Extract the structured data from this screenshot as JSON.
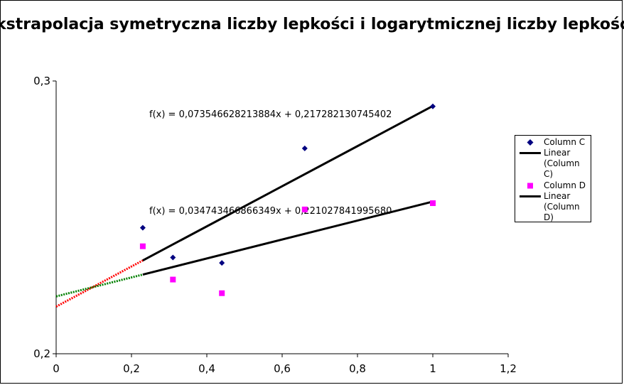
{
  "chart_data": {
    "type": "scatter",
    "title": "Ekstrapolacja symetryczna liczby lepkości i logarytmicznej liczby lepkości",
    "xlim": [
      0,
      1.2
    ],
    "ylim": [
      0.2,
      0.3
    ],
    "x_ticks": [
      "0",
      "0,2",
      "0,4",
      "0,6",
      "0,8",
      "1",
      "1,2"
    ],
    "y_ticks": [
      "0,2",
      "0,3"
    ],
    "series": [
      {
        "name": "Column C",
        "marker": "diamond",
        "color": "#000080",
        "points": [
          [
            0.23,
            0.2462
          ],
          [
            0.31,
            0.2353
          ],
          [
            0.44,
            0.2333
          ],
          [
            0.66,
            0.2753
          ],
          [
            1.0,
            0.2907
          ]
        ]
      },
      {
        "name": "Column D",
        "marker": "square",
        "color": "#ff00ff",
        "points": [
          [
            0.23,
            0.2394
          ],
          [
            0.31,
            0.2272
          ],
          [
            0.44,
            0.2222
          ],
          [
            0.66,
            0.2529
          ],
          [
            1.0,
            0.2552
          ]
        ]
      }
    ],
    "trendlines": [
      {
        "name": "Linear (Column C)",
        "slope": 0.073546628213884,
        "intercept": 0.217282130745402,
        "equation": "f(x) = 0,073546628213884x + 0,217282130745402",
        "x_range": [
          0.23,
          1.0
        ],
        "color": "#000000"
      },
      {
        "name": "Linear (Column D)",
        "slope": 0.034743466866349,
        "intercept": 0.22102784199568,
        "equation": "f(x) = 0,034743466866349x + 0,221027841995680",
        "x_range": [
          0.23,
          1.0
        ],
        "color": "#000000"
      }
    ],
    "extrapolations": [
      {
        "of": "Linear (Column C)",
        "x_range": [
          0,
          0.23
        ],
        "color": "#ff0000",
        "style": "dotted"
      },
      {
        "of": "Linear (Column D)",
        "x_range": [
          0,
          0.23
        ],
        "color": "#008000",
        "style": "dotted"
      }
    ],
    "legend": {
      "position": "right",
      "entries": [
        {
          "label": "Column C",
          "symbol": "diamond",
          "color": "#000080"
        },
        {
          "label": "Linear (Column C)",
          "symbol": "line",
          "color": "#000000"
        },
        {
          "label": "Column D",
          "symbol": "square",
          "color": "#ff00ff"
        },
        {
          "label": "Linear (Column D)",
          "symbol": "line",
          "color": "#000000"
        }
      ]
    },
    "grid": false
  }
}
